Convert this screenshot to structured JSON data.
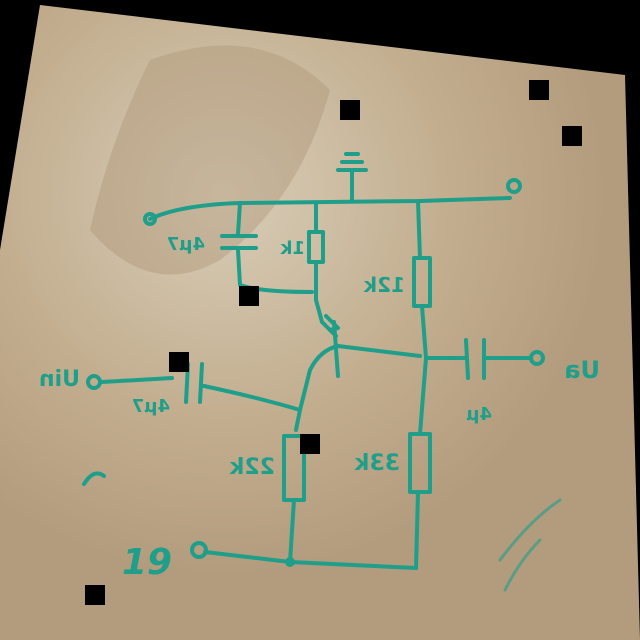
{
  "colors": {
    "ink": "#1f9e8a",
    "paper": "#c9b79a",
    "background": "#000000",
    "redaction": "#000000"
  },
  "labels": {
    "c_top_left": "4µ7",
    "r_1k": "1k",
    "r_12k": "12k",
    "input": "Uin",
    "c_input": "4µ7",
    "r_22k": "22k",
    "r_33k": "33k",
    "c_output": "4µ",
    "output": "Ua",
    "supply": "19"
  }
}
